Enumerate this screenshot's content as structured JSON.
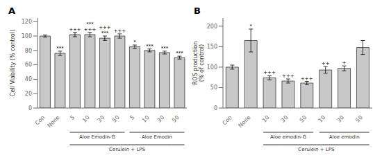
{
  "chart_data": [
    {
      "type": "bar",
      "title": "A",
      "ylabel": "Cell Viability (% control)",
      "categories": [
        "Con",
        "None",
        "5",
        "10",
        "30",
        "50",
        "5",
        "10",
        "30",
        "50"
      ],
      "values": [
        100,
        76,
        102,
        102,
        97,
        100,
        85,
        80,
        77,
        70
      ],
      "errors": [
        1.5,
        3,
        3,
        3,
        3,
        3,
        2.5,
        2,
        2,
        2
      ],
      "color": "#c8c8c8",
      "ylim": [
        0,
        125
      ],
      "yticks": [
        0,
        20,
        40,
        60,
        80,
        100,
        120
      ],
      "significance": [
        [],
        [
          "***"
        ],
        [
          "+++"
        ],
        [
          "+++",
          "***"
        ],
        [
          "***",
          "+++"
        ],
        [
          "+++"
        ],
        [
          "*"
        ],
        [
          "***"
        ],
        [
          "***"
        ],
        [
          "***"
        ]
      ],
      "groups": [
        {
          "label": "Aloe Emodin-G",
          "start": 2,
          "end": 5
        },
        {
          "label": "Aloe Emodin",
          "start": 6,
          "end": 9
        }
      ],
      "span": {
        "label": "Cerulein + LPS",
        "start": 2,
        "end": 9
      }
    },
    {
      "type": "bar",
      "title": "B",
      "ylabel": "ROS production\n(% of control)",
      "categories": [
        "Con",
        "None",
        "10",
        "30",
        "50",
        "10",
        "30",
        "50"
      ],
      "values": [
        100,
        165,
        74,
        66,
        61,
        93,
        97,
        148
      ],
      "errors": [
        5,
        28,
        5,
        5,
        4,
        8,
        6,
        17
      ],
      "color": "#c8c8c8",
      "ylim": [
        0,
        220
      ],
      "yticks": [
        0,
        50,
        100,
        150,
        200
      ],
      "significance": [
        [],
        [
          "*"
        ],
        [
          "+++"
        ],
        [
          "+++"
        ],
        [
          "+++"
        ],
        [
          "++"
        ],
        [
          "+"
        ],
        []
      ],
      "groups": [
        {
          "label": "Aloe emodin-G",
          "start": 2,
          "end": 4
        },
        {
          "label": "Aloe emodin",
          "start": 5,
          "end": 7
        }
      ],
      "span": {
        "label": "Cerulein + LPS",
        "start": 2,
        "end": 7
      }
    }
  ]
}
